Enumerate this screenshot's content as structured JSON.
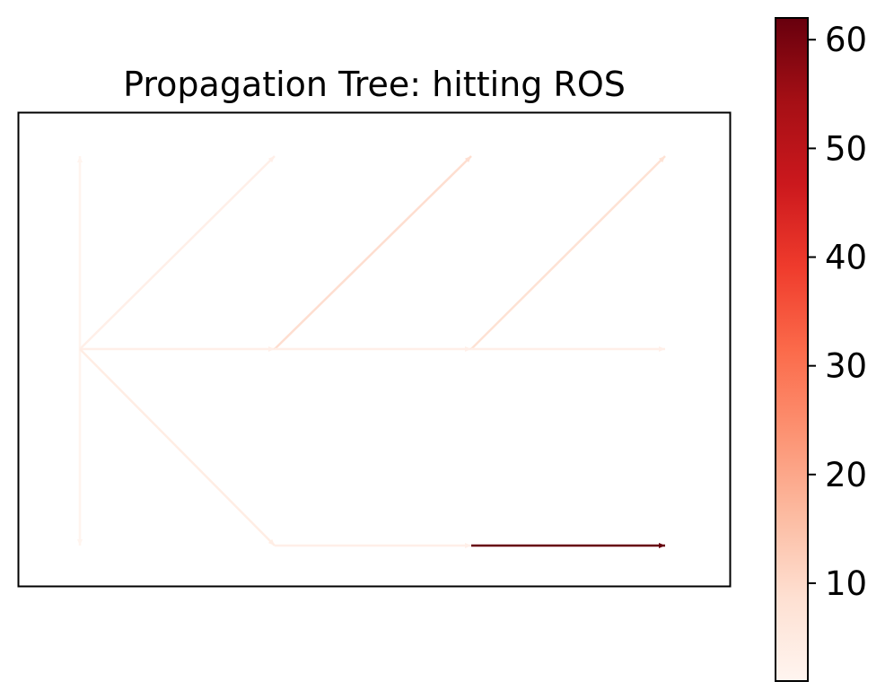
{
  "title": "Propagation Tree: hitting ROS",
  "nodes": [
    {
      "id": "a0",
      "col": 0,
      "row": 0
    },
    {
      "id": "a1",
      "col": 0,
      "row": 1
    },
    {
      "id": "a2",
      "col": 0,
      "row": 2
    },
    {
      "id": "b0",
      "col": 1,
      "row": 0
    },
    {
      "id": "b1",
      "col": 1,
      "row": 1
    },
    {
      "id": "b2",
      "col": 1,
      "row": 2
    },
    {
      "id": "c0",
      "col": 2,
      "row": 0
    },
    {
      "id": "c1",
      "col": 2,
      "row": 1
    },
    {
      "id": "c2",
      "col": 2,
      "row": 2
    },
    {
      "id": "d0",
      "col": 3,
      "row": 0
    },
    {
      "id": "d1",
      "col": 3,
      "row": 1
    },
    {
      "id": "d2",
      "col": 3,
      "row": 2
    }
  ],
  "edges": [
    {
      "from": "a1",
      "to": "a0",
      "value": 1.5
    },
    {
      "from": "a1",
      "to": "a2",
      "value": 1.5
    },
    {
      "from": "a1",
      "to": "b0",
      "value": 3
    },
    {
      "from": "a1",
      "to": "b1",
      "value": 3
    },
    {
      "from": "a1",
      "to": "b2",
      "value": 4
    },
    {
      "from": "b1",
      "to": "c0",
      "value": 9
    },
    {
      "from": "b1",
      "to": "c1",
      "value": 3
    },
    {
      "from": "b2",
      "to": "c2",
      "value": 3
    },
    {
      "from": "c1",
      "to": "d0",
      "value": 8
    },
    {
      "from": "c1",
      "to": "d1",
      "value": 3
    },
    {
      "from": "c2",
      "to": "d2",
      "value": 62
    }
  ],
  "colorbar": {
    "colormap": "Reds",
    "min": 1,
    "max": 62,
    "ticks": [
      10,
      20,
      30,
      40,
      50,
      60
    ],
    "tick_labels": [
      "10",
      "20",
      "30",
      "40",
      "50",
      "60"
    ]
  }
}
